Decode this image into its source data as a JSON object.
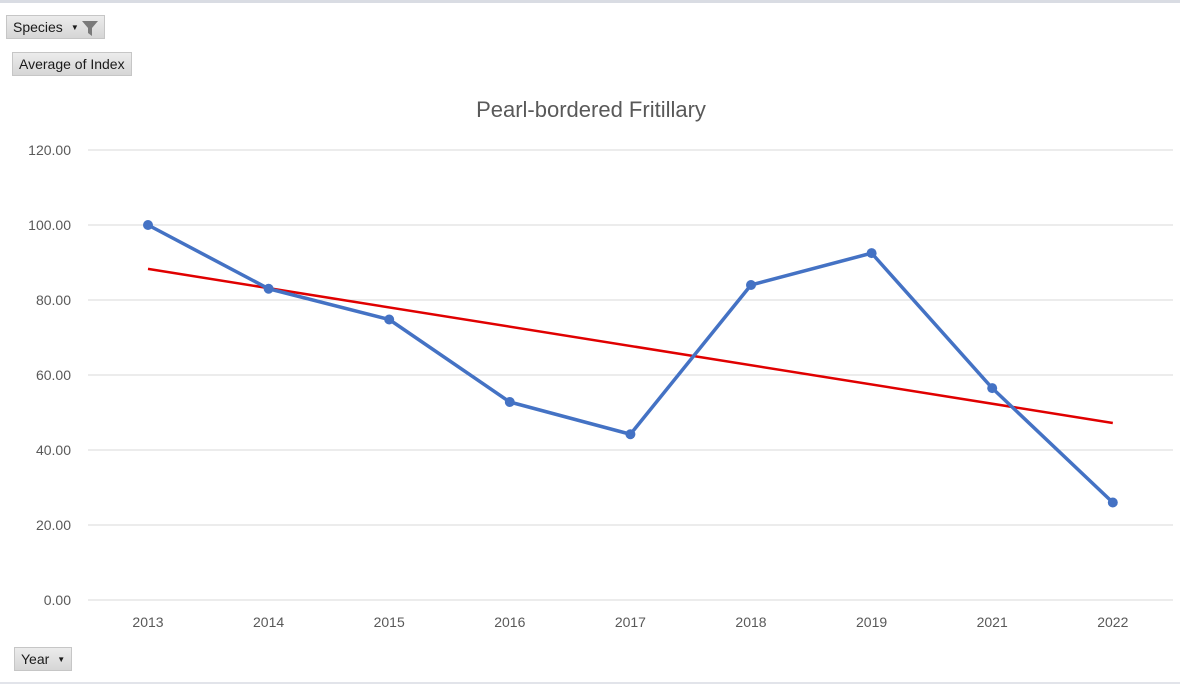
{
  "filters": {
    "species_label": "Species",
    "value_field_label": "Average of Index",
    "axis_field_label": "Year"
  },
  "icons": {
    "species_dropdown": "dropdown-arrow-icon",
    "species_filter": "funnel-icon",
    "year_dropdown": "dropdown-arrow-icon"
  },
  "chart_data": {
    "type": "line",
    "title": "Pearl-bordered Fritillary",
    "xlabel": "",
    "ylabel": "",
    "categories": [
      "2013",
      "2014",
      "2015",
      "2016",
      "2017",
      "2018",
      "2019",
      "2021",
      "2022"
    ],
    "series": [
      {
        "values": [
          100.0,
          83.0,
          74.8,
          52.8,
          44.2,
          84.0,
          92.5,
          56.5,
          26.0
        ],
        "color": "#4472c4",
        "markers": true
      }
    ],
    "trendline": {
      "type": "linear",
      "color": "#e00000",
      "start": 88.3,
      "end": 47.2
    },
    "ylim": [
      0,
      120
    ],
    "yticks": [
      0,
      20,
      40,
      60,
      80,
      100,
      120
    ],
    "ytick_labels": [
      "0.00",
      "20.00",
      "40.00",
      "60.00",
      "80.00",
      "100.00",
      "120.00"
    ],
    "grid": true,
    "legend": "none"
  }
}
